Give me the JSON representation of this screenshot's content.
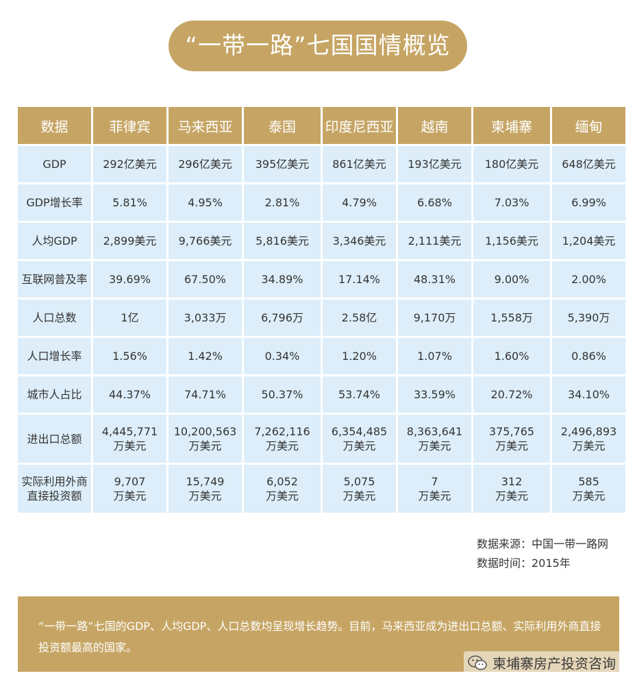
{
  "title": "“一带一路”七国国情概览",
  "table": {
    "headers": [
      "数据",
      "菲律宾",
      "马来西亚",
      "泰国",
      "印度尼西亚",
      "越南",
      "柬埔寨",
      "缅甸"
    ],
    "rows": [
      {
        "label": "GDP",
        "values": [
          "292亿美元",
          "296亿美元",
          "395亿美元",
          "861亿美元",
          "193亿美元",
          "180亿美元",
          "648亿美元"
        ]
      },
      {
        "label": "GDP增长率",
        "values": [
          "5.81%",
          "4.95%",
          "2.81%",
          "4.79%",
          "6.68%",
          "7.03%",
          "6.99%"
        ]
      },
      {
        "label": "人均GDP",
        "values": [
          "2,899美元",
          "9,766美元",
          "5,816美元",
          "3,346美元",
          "2,111美元",
          "1,156美元",
          "1,204美元"
        ]
      },
      {
        "label": "互联网普及率",
        "values": [
          "39.69%",
          "67.50%",
          "34.89%",
          "17.14%",
          "48.31%",
          "9.00%",
          "2.00%"
        ]
      },
      {
        "label": "人口总数",
        "values": [
          "1亿",
          "3,033万",
          "6,796万",
          "2.58亿",
          "9,170万",
          "1,558万",
          "5,390万"
        ]
      },
      {
        "label": "人口增长率",
        "values": [
          "1.56%",
          "1.42%",
          "0.34%",
          "1.20%",
          "1.07%",
          "1.60%",
          "0.86%"
        ]
      },
      {
        "label": "城市人占比",
        "values": [
          "44.37%",
          "74.71%",
          "50.37%",
          "53.74%",
          "33.59%",
          "20.72%",
          "34.10%"
        ]
      },
      {
        "label": "进出口总额",
        "values": [
          "4,445,771\n万美元",
          "10,200,563\n万美元",
          "7,262,116\n万美元",
          "6,354,485\n万美元",
          "8,363,641\n万美元",
          "375,765\n万美元",
          "2,496,893\n万美元"
        ]
      },
      {
        "label": "实际利用外商\n直接投资额",
        "values": [
          "9,707\n万美元",
          "15,749\n万美元",
          "6,052\n万美元",
          "5,075\n万美元",
          "7\n万美元",
          "312\n万美元",
          "585\n万美元"
        ]
      }
    ]
  },
  "source": {
    "line1": "数据来源：中国一带一路网",
    "line2": "数据时间：2015年"
  },
  "summary": "“一带一路”七国的GDP、人均GDP、人口总数均呈现增长趋势。目前，马来西亚成为进出口总额、实际利用外商直接投资额最高的国家。",
  "watermark": {
    "icon": "wechat-icon",
    "text": "柬埔寨房产投资咨询"
  },
  "colors": {
    "gold": "#c6a564",
    "cell": "#ddeefa",
    "text": "#333333"
  }
}
